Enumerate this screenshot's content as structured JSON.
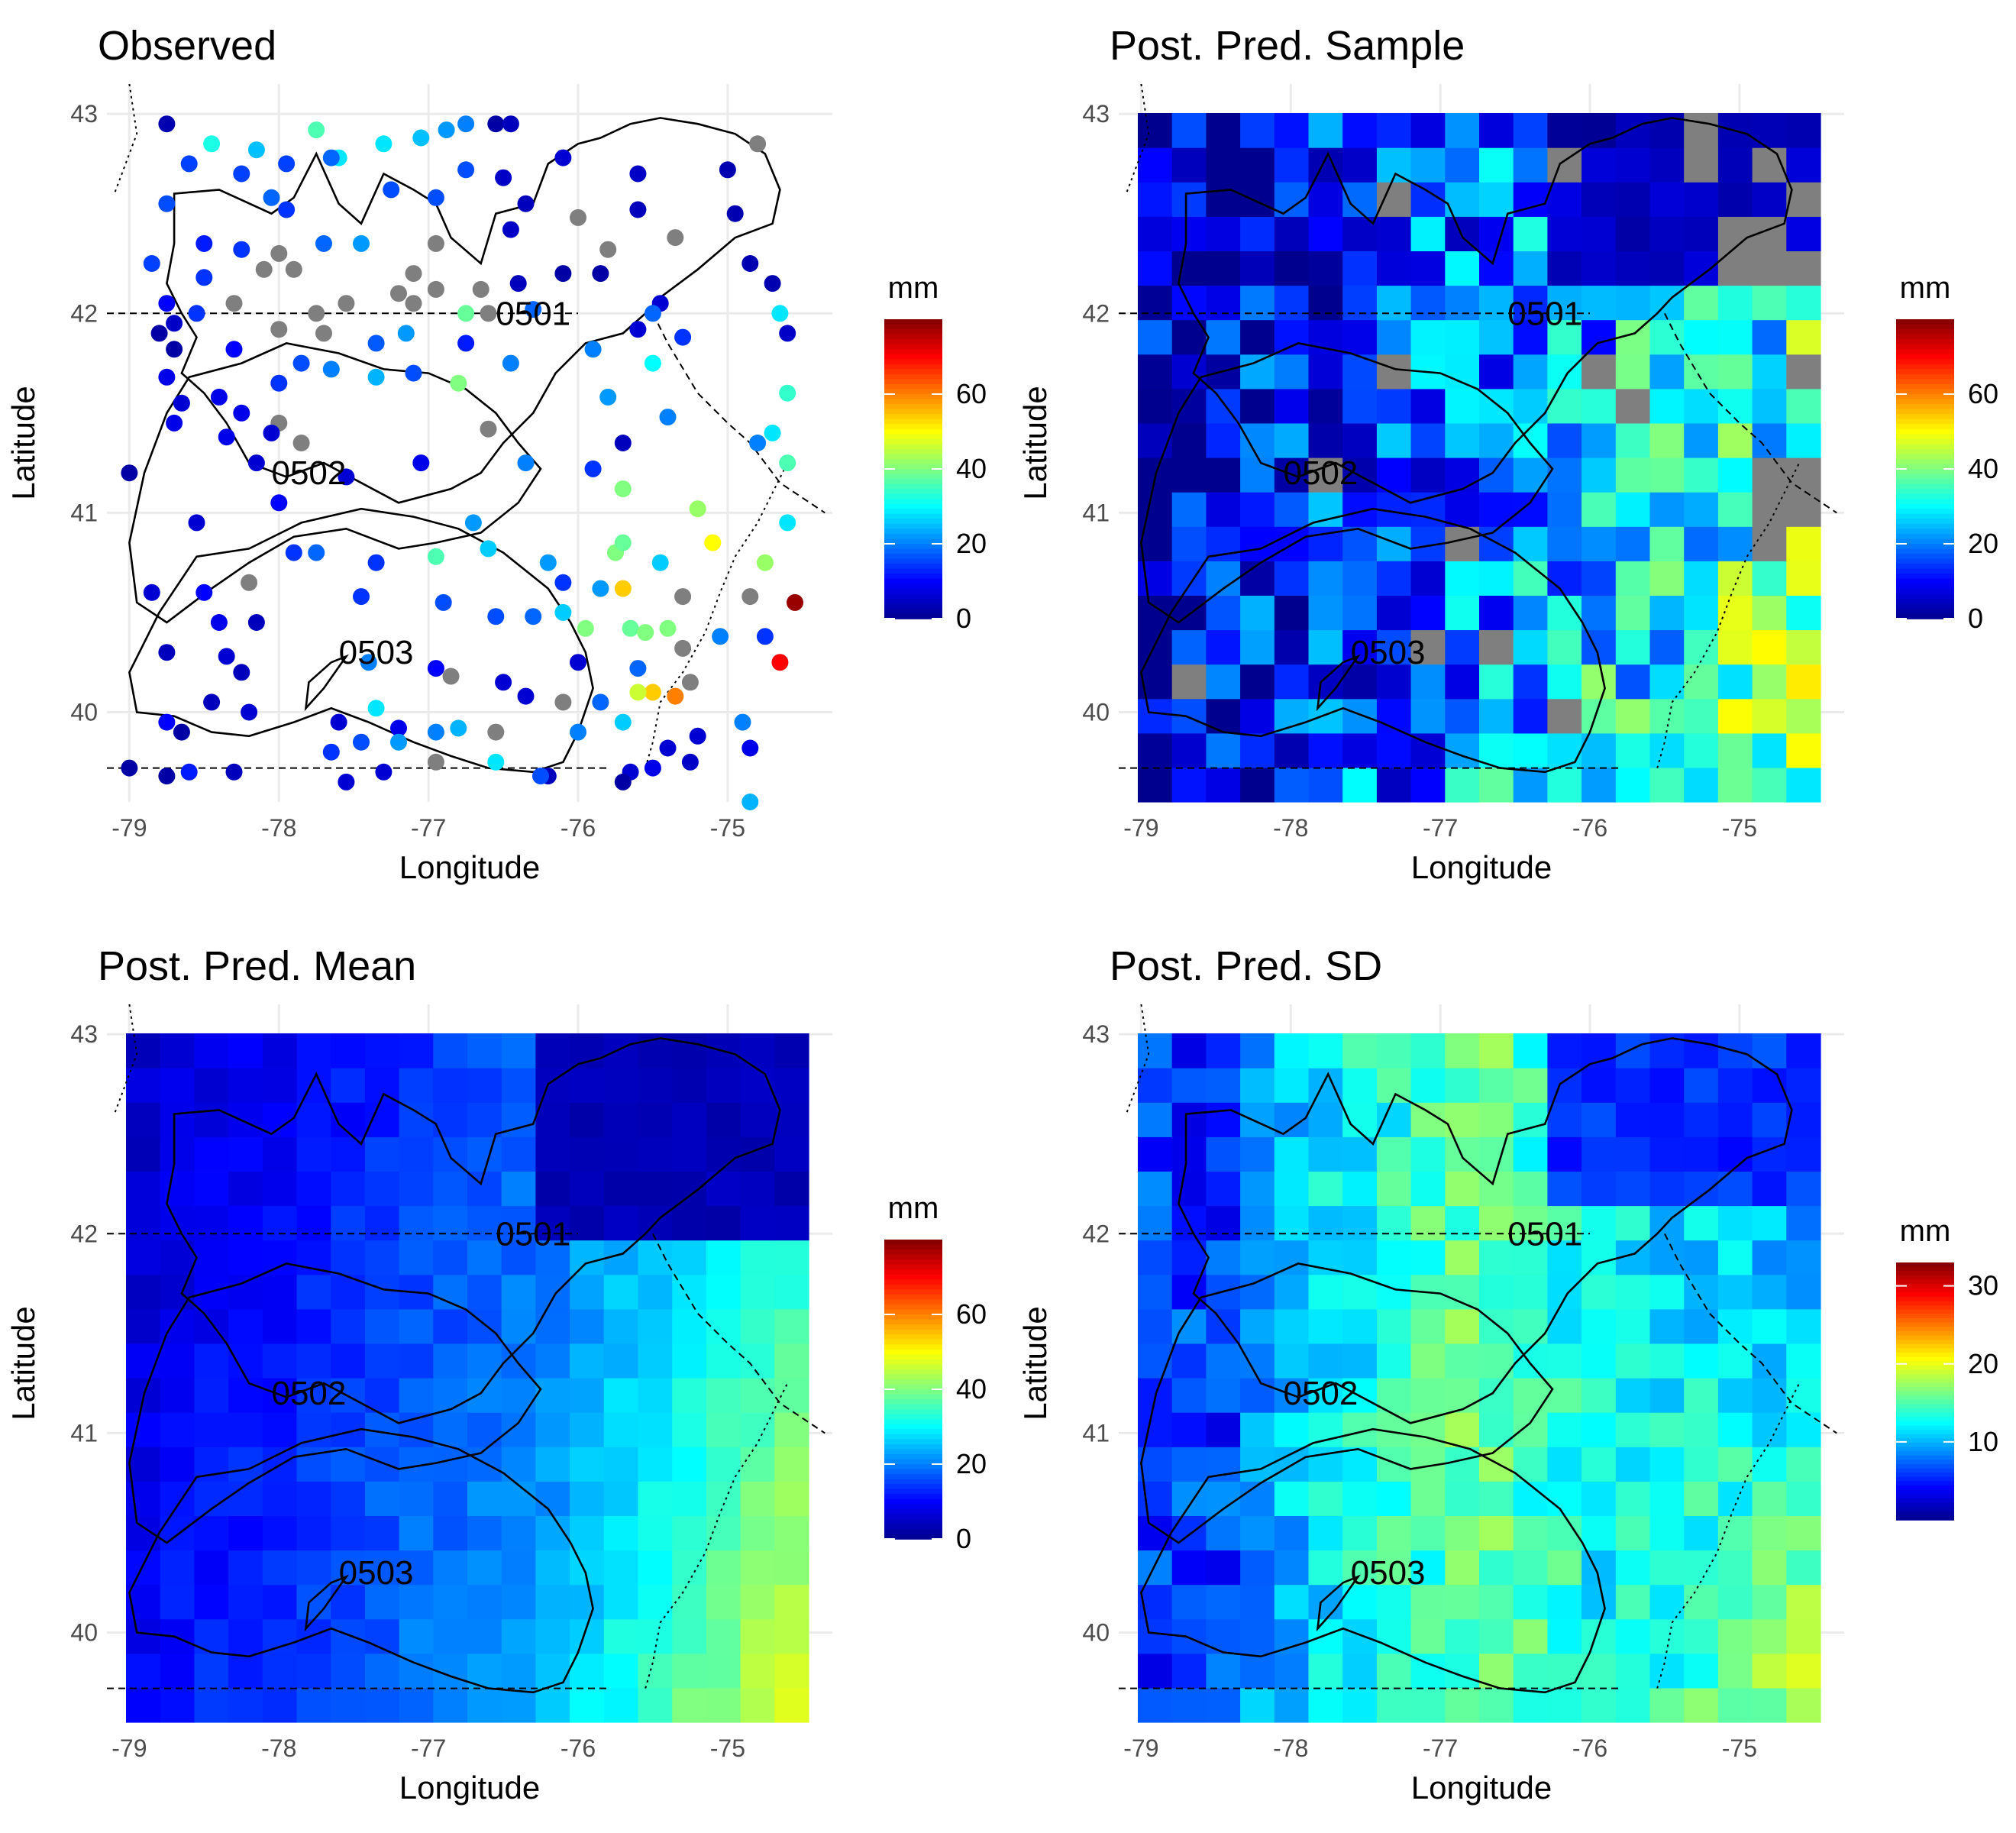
{
  "colors": {
    "scale": [
      "#00008F",
      "#0000FF",
      "#0080FF",
      "#00FFFF",
      "#80FF80",
      "#FFFF00",
      "#FF8000",
      "#FF0000",
      "#800000"
    ],
    "missing": "#7F7F7F",
    "grid": "#EBEBEB"
  },
  "chart_data": [
    {
      "type": "scatter",
      "title": "Observed",
      "xlabel": "Longitude",
      "ylabel": "Latitude",
      "xlim": [
        -79.15,
        -74.3
      ],
      "ylim": [
        39.55,
        43.15
      ],
      "xticks": [
        "-79",
        "-78",
        "-77",
        "-76",
        "-75"
      ],
      "yticks": [
        "40",
        "41",
        "42",
        "43"
      ],
      "legend_title": "mm",
      "legend_ticks": [
        "0",
        "20",
        "40",
        "60"
      ],
      "legend_range": [
        0,
        80
      ],
      "region_labels": [
        "0501",
        "0502",
        "0503"
      ],
      "points": [
        [
          -78.75,
          42.95,
          3
        ],
        [
          -78.45,
          42.85,
          32
        ],
        [
          -78.15,
          42.82,
          25
        ],
        [
          -77.75,
          42.92,
          36
        ],
        [
          -77.6,
          42.78,
          28
        ],
        [
          -77.3,
          42.85,
          28
        ],
        [
          -77.05,
          42.88,
          25
        ],
        [
          -76.88,
          42.92,
          22
        ],
        [
          -76.75,
          42.95,
          20
        ],
        [
          -76.55,
          42.95,
          2
        ],
        [
          -76.45,
          42.95,
          4
        ],
        [
          -78.6,
          42.75,
          15
        ],
        [
          -78.25,
          42.7,
          15
        ],
        [
          -77.95,
          42.75,
          15
        ],
        [
          -77.65,
          42.78,
          18
        ],
        [
          -76.75,
          42.72,
          16
        ],
        [
          -76.5,
          42.68,
          5
        ],
        [
          -76.1,
          42.78,
          6
        ],
        [
          -75.6,
          42.7,
          5
        ],
        [
          -75.0,
          42.72,
          3
        ],
        [
          -74.8,
          42.85,
          null
        ],
        [
          -78.75,
          42.55,
          16
        ],
        [
          -78.05,
          42.58,
          18
        ],
        [
          -77.95,
          42.52,
          14
        ],
        [
          -77.25,
          42.62,
          16
        ],
        [
          -76.95,
          42.58,
          16
        ],
        [
          -76.35,
          42.55,
          4
        ],
        [
          -75.6,
          42.52,
          4
        ],
        [
          -74.95,
          42.5,
          3
        ],
        [
          -78.5,
          42.35,
          12
        ],
        [
          -78.25,
          42.32,
          14
        ],
        [
          -78.0,
          42.3,
          null
        ],
        [
          -77.7,
          42.35,
          18
        ],
        [
          -77.45,
          42.35,
          22
        ],
        [
          -76.95,
          42.35,
          null
        ],
        [
          -76.45,
          42.42,
          5
        ],
        [
          -76.0,
          42.48,
          null
        ],
        [
          -75.8,
          42.32,
          null
        ],
        [
          -75.35,
          42.38,
          null
        ],
        [
          -74.85,
          42.25,
          3
        ],
        [
          -78.85,
          42.25,
          15
        ],
        [
          -78.5,
          42.18,
          14
        ],
        [
          -78.1,
          42.22,
          null
        ],
        [
          -77.9,
          42.22,
          null
        ],
        [
          -77.1,
          42.2,
          null
        ],
        [
          -77.2,
          42.1,
          null
        ],
        [
          -76.95,
          42.12,
          null
        ],
        [
          -76.65,
          42.12,
          null
        ],
        [
          -76.4,
          42.15,
          4
        ],
        [
          -76.1,
          42.2,
          2
        ],
        [
          -75.85,
          42.2,
          2
        ],
        [
          -75.45,
          42.05,
          6
        ],
        [
          -74.7,
          42.15,
          3
        ],
        [
          -78.75,
          42.05,
          10
        ],
        [
          -78.7,
          41.95,
          5
        ],
        [
          -78.55,
          42.0,
          14
        ],
        [
          -78.3,
          42.05,
          null
        ],
        [
          -77.75,
          42.0,
          null
        ],
        [
          -77.55,
          42.05,
          null
        ],
        [
          -77.1,
          42.05,
          null
        ],
        [
          -76.75,
          42.0,
          38
        ],
        [
          -76.6,
          42.0,
          null
        ],
        [
          -76.3,
          42.02,
          18
        ],
        [
          -75.5,
          42.0,
          18
        ],
        [
          -74.65,
          42.0,
          28
        ],
        [
          -78.8,
          41.9,
          2
        ],
        [
          -78.7,
          41.82,
          2
        ],
        [
          -78.3,
          41.82,
          10
        ],
        [
          -78.0,
          41.92,
          null
        ],
        [
          -77.7,
          41.9,
          null
        ],
        [
          -77.35,
          41.85,
          17
        ],
        [
          -77.15,
          41.9,
          22
        ],
        [
          -76.75,
          41.85,
          12
        ],
        [
          -75.9,
          41.82,
          20
        ],
        [
          -75.6,
          41.92,
          6
        ],
        [
          -75.3,
          41.88,
          14
        ],
        [
          -74.6,
          41.9,
          5
        ],
        [
          -78.75,
          41.68,
          8
        ],
        [
          -78.4,
          41.58,
          8
        ],
        [
          -78.0,
          41.65,
          14
        ],
        [
          -77.85,
          41.75,
          16
        ],
        [
          -77.65,
          41.72,
          20
        ],
        [
          -77.35,
          41.68,
          24
        ],
        [
          -77.1,
          41.7,
          16
        ],
        [
          -76.8,
          41.65,
          40
        ],
        [
          -76.45,
          41.75,
          20
        ],
        [
          -75.8,
          41.58,
          22
        ],
        [
          -75.5,
          41.75,
          30
        ],
        [
          -74.6,
          41.6,
          34
        ],
        [
          -78.65,
          41.55,
          6
        ],
        [
          -78.25,
          41.5,
          8
        ],
        [
          -78.0,
          41.45,
          null
        ],
        [
          -76.6,
          41.42,
          null
        ],
        [
          -75.4,
          41.48,
          20
        ],
        [
          -74.7,
          41.4,
          28
        ],
        [
          -78.7,
          41.45,
          8
        ],
        [
          -78.35,
          41.38,
          8
        ],
        [
          -78.05,
          41.4,
          6
        ],
        [
          -77.85,
          41.35,
          null
        ],
        [
          -77.05,
          41.25,
          8
        ],
        [
          -75.7,
          41.35,
          4
        ],
        [
          -74.8,
          41.35,
          20
        ],
        [
          -79.0,
          41.2,
          2
        ],
        [
          -78.15,
          41.25,
          6
        ],
        [
          -77.55,
          41.18,
          6
        ],
        [
          -76.35,
          41.25,
          20
        ],
        [
          -75.9,
          41.22,
          14
        ],
        [
          -74.6,
          41.25,
          36
        ],
        [
          -78.0,
          41.05,
          10
        ],
        [
          -76.7,
          40.95,
          22
        ],
        [
          -75.7,
          41.12,
          40
        ],
        [
          -75.2,
          41.02,
          42
        ],
        [
          -74.6,
          40.95,
          28
        ],
        [
          -78.55,
          40.95,
          6
        ],
        [
          -77.9,
          40.8,
          14
        ],
        [
          -77.75,
          40.8,
          18
        ],
        [
          -77.35,
          40.75,
          14
        ],
        [
          -76.95,
          40.78,
          36
        ],
        [
          -76.6,
          40.82,
          26
        ],
        [
          -76.2,
          40.75,
          22
        ],
        [
          -75.75,
          40.8,
          40
        ],
        [
          -75.7,
          40.85,
          38
        ],
        [
          -75.45,
          40.75,
          26
        ],
        [
          -75.1,
          40.85,
          50
        ],
        [
          -74.75,
          40.75,
          42
        ],
        [
          -78.85,
          40.6,
          6
        ],
        [
          -78.5,
          40.6,
          10
        ],
        [
          -78.2,
          40.65,
          null
        ],
        [
          -77.45,
          40.58,
          14
        ],
        [
          -76.1,
          40.65,
          14
        ],
        [
          -75.85,
          40.62,
          22
        ],
        [
          -75.7,
          40.62,
          54
        ],
        [
          -75.3,
          40.58,
          null
        ],
        [
          -74.85,
          40.58,
          null
        ],
        [
          -74.55,
          40.55,
          78
        ],
        [
          -78.4,
          40.45,
          8
        ],
        [
          -78.15,
          40.45,
          4
        ],
        [
          -76.9,
          40.55,
          16
        ],
        [
          -76.55,
          40.48,
          16
        ],
        [
          -76.3,
          40.48,
          18
        ],
        [
          -76.1,
          40.5,
          26
        ],
        [
          -75.95,
          40.42,
          40
        ],
        [
          -75.65,
          40.42,
          38
        ],
        [
          -75.55,
          40.4,
          40
        ],
        [
          -75.4,
          40.42,
          40
        ],
        [
          -75.3,
          40.32,
          null
        ],
        [
          -75.05,
          40.38,
          20
        ],
        [
          -74.75,
          40.38,
          14
        ],
        [
          -78.75,
          40.3,
          4
        ],
        [
          -78.35,
          40.28,
          6
        ],
        [
          -78.25,
          40.2,
          4
        ],
        [
          -77.4,
          40.25,
          20
        ],
        [
          -76.95,
          40.22,
          10
        ],
        [
          -76.85,
          40.18,
          null
        ],
        [
          -76.5,
          40.15,
          6
        ],
        [
          -76.0,
          40.25,
          6
        ],
        [
          -75.6,
          40.22,
          18
        ],
        [
          -75.5,
          40.1,
          54
        ],
        [
          -75.25,
          40.15,
          null
        ],
        [
          -74.65,
          40.25,
          70
        ],
        [
          -78.45,
          40.05,
          4
        ],
        [
          -78.2,
          40.0,
          6
        ],
        [
          -77.35,
          40.02,
          28
        ],
        [
          -76.35,
          40.08,
          6
        ],
        [
          -76.1,
          40.05,
          null
        ],
        [
          -75.85,
          40.05,
          18
        ],
        [
          -75.6,
          40.1,
          46
        ],
        [
          -75.35,
          40.08,
          60
        ],
        [
          -78.75,
          39.95,
          10
        ],
        [
          -78.65,
          39.9,
          2
        ],
        [
          -77.6,
          39.95,
          6
        ],
        [
          -77.45,
          39.85,
          16
        ],
        [
          -77.2,
          39.92,
          8
        ],
        [
          -76.95,
          39.9,
          20
        ],
        [
          -76.8,
          39.92,
          24
        ],
        [
          -76.55,
          39.9,
          null
        ],
        [
          -76.0,
          39.9,
          20
        ],
        [
          -75.7,
          39.95,
          26
        ],
        [
          -75.4,
          39.82,
          6
        ],
        [
          -75.2,
          39.88,
          6
        ],
        [
          -74.9,
          39.95,
          20
        ],
        [
          -78.6,
          39.7,
          12
        ],
        [
          -78.3,
          39.7,
          4
        ],
        [
          -77.65,
          39.8,
          14
        ],
        [
          -77.2,
          39.85,
          22
        ],
        [
          -76.95,
          39.75,
          null
        ],
        [
          -76.55,
          39.75,
          28
        ],
        [
          -76.2,
          39.68,
          4
        ],
        [
          -75.65,
          39.7,
          6
        ],
        [
          -75.25,
          39.75,
          5
        ],
        [
          -74.85,
          39.82,
          8
        ],
        [
          -79.0,
          39.72,
          2
        ],
        [
          -78.75,
          39.68,
          2
        ],
        [
          -77.55,
          39.65,
          6
        ],
        [
          -77.3,
          39.7,
          6
        ],
        [
          -76.25,
          39.68,
          16
        ],
        [
          -75.7,
          39.65,
          2
        ],
        [
          -75.5,
          39.72,
          8
        ],
        [
          -74.85,
          39.55,
          24
        ]
      ]
    },
    {
      "type": "heatmap",
      "title": "Post. Pred. Sample",
      "xlabel": "Longitude",
      "ylabel": "Latitude",
      "xlim": [
        -79.15,
        -74.3
      ],
      "ylim": [
        39.55,
        43.15
      ],
      "xticks": [
        "-79",
        "-78",
        "-77",
        "-76",
        "-75"
      ],
      "yticks": [
        "40",
        "41",
        "42",
        "43"
      ],
      "legend_title": "mm",
      "legend_ticks": [
        "0",
        "20",
        "40",
        "60"
      ],
      "legend_range": [
        0,
        80
      ],
      "region_labels": [
        "0501",
        "0502",
        "0503"
      ]
    },
    {
      "type": "heatmap",
      "title": "Post. Pred. Mean",
      "xlabel": "Longitude",
      "ylabel": "Latitude",
      "xlim": [
        -79.15,
        -74.3
      ],
      "ylim": [
        39.55,
        43.15
      ],
      "xticks": [
        "-79",
        "-78",
        "-77",
        "-76",
        "-75"
      ],
      "yticks": [
        "40",
        "41",
        "42",
        "43"
      ],
      "legend_title": "mm",
      "legend_ticks": [
        "0",
        "20",
        "40",
        "60"
      ],
      "legend_range": [
        0,
        80
      ],
      "region_labels": [
        "0501",
        "0502",
        "0503"
      ]
    },
    {
      "type": "heatmap",
      "title": "Post. Pred. SD",
      "xlabel": "Longitude",
      "ylabel": "Latitude",
      "xlim": [
        -79.15,
        -74.3
      ],
      "ylim": [
        39.55,
        43.15
      ],
      "xticks": [
        "-79",
        "-78",
        "-77",
        "-76",
        "-75"
      ],
      "yticks": [
        "40",
        "41",
        "42",
        "43"
      ],
      "legend_title": "mm",
      "legend_ticks": [
        "10",
        "20",
        "30"
      ],
      "legend_range": [
        0,
        33
      ],
      "region_labels": [
        "0501",
        "0502",
        "0503"
      ]
    }
  ]
}
